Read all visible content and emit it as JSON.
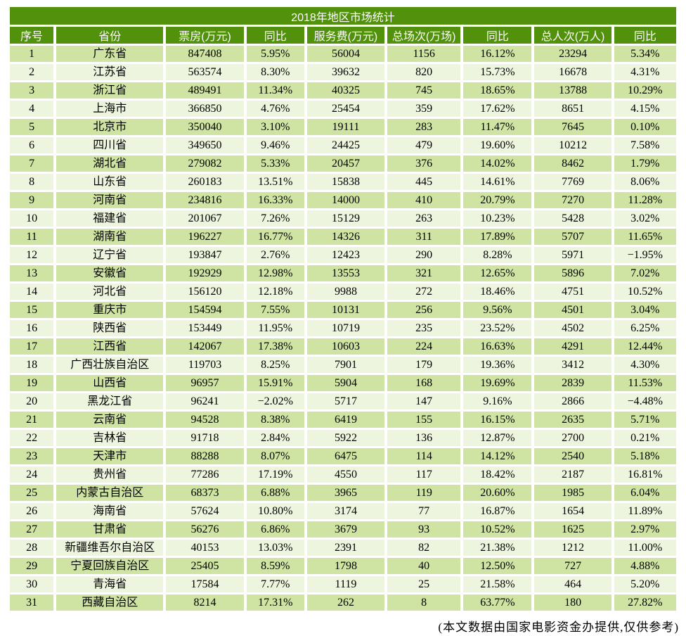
{
  "colors": {
    "header_green": "#52910b",
    "row_odd": "#cfe3a3",
    "row_even": "#edf5de",
    "header_text": "#ffffff",
    "text": "#000000",
    "page_bg": "#ffffff"
  },
  "footer_note": "(本文数据由国家电影资金办提供,仅供参考)",
  "chart_data": {
    "type": "table",
    "title": "2018年地区市场统计",
    "columns": [
      "序号",
      "省份",
      "票房(万元)",
      "同比",
      "服务费(万元)",
      "总场次(万场)",
      "同比",
      "总人次(万人)",
      "同比"
    ],
    "column_keys": [
      "rank",
      "province",
      "box-office",
      "box-office-yoy",
      "service-fee",
      "screenings",
      "screenings-yoy",
      "admissions",
      "admissions-yoy"
    ],
    "rows": [
      [
        "1",
        "广东省",
        "847408",
        "5.95%",
        "56004",
        "1156",
        "16.12%",
        "23294",
        "5.34%"
      ],
      [
        "2",
        "江苏省",
        "563574",
        "8.30%",
        "39632",
        "820",
        "15.73%",
        "16678",
        "4.31%"
      ],
      [
        "3",
        "浙江省",
        "489491",
        "11.34%",
        "40325",
        "745",
        "18.65%",
        "13788",
        "10.29%"
      ],
      [
        "4",
        "上海市",
        "366850",
        "4.76%",
        "25454",
        "359",
        "17.62%",
        "8651",
        "4.15%"
      ],
      [
        "5",
        "北京市",
        "350040",
        "3.10%",
        "19111",
        "283",
        "11.47%",
        "7645",
        "0.10%"
      ],
      [
        "6",
        "四川省",
        "349650",
        "9.46%",
        "24425",
        "479",
        "19.60%",
        "10212",
        "7.58%"
      ],
      [
        "7",
        "湖北省",
        "279082",
        "5.33%",
        "20457",
        "376",
        "14.02%",
        "8462",
        "1.79%"
      ],
      [
        "8",
        "山东省",
        "260183",
        "13.51%",
        "15838",
        "445",
        "14.61%",
        "7769",
        "8.06%"
      ],
      [
        "9",
        "河南省",
        "234816",
        "16.33%",
        "14000",
        "410",
        "20.79%",
        "7270",
        "11.28%"
      ],
      [
        "10",
        "福建省",
        "201067",
        "7.26%",
        "15129",
        "263",
        "10.23%",
        "5428",
        "3.02%"
      ],
      [
        "11",
        "湖南省",
        "196227",
        "16.77%",
        "14326",
        "311",
        "17.89%",
        "5707",
        "11.65%"
      ],
      [
        "12",
        "辽宁省",
        "193847",
        "2.76%",
        "12423",
        "290",
        "8.28%",
        "5971",
        "−1.95%"
      ],
      [
        "13",
        "安徽省",
        "192929",
        "12.98%",
        "13553",
        "321",
        "12.65%",
        "5896",
        "7.02%"
      ],
      [
        "14",
        "河北省",
        "156120",
        "12.18%",
        "9988",
        "272",
        "18.46%",
        "4751",
        "10.52%"
      ],
      [
        "15",
        "重庆市",
        "154594",
        "7.55%",
        "10131",
        "256",
        "9.56%",
        "4501",
        "3.04%"
      ],
      [
        "16",
        "陕西省",
        "153449",
        "11.95%",
        "10719",
        "235",
        "23.52%",
        "4502",
        "6.25%"
      ],
      [
        "17",
        "江西省",
        "142067",
        "17.38%",
        "10603",
        "224",
        "16.63%",
        "4291",
        "12.44%"
      ],
      [
        "18",
        "广西壮族自治区",
        "119703",
        "8.25%",
        "7901",
        "179",
        "19.36%",
        "3412",
        "4.30%"
      ],
      [
        "19",
        "山西省",
        "96957",
        "15.91%",
        "5904",
        "168",
        "19.69%",
        "2839",
        "11.53%"
      ],
      [
        "20",
        "黑龙江省",
        "96241",
        "−2.02%",
        "5717",
        "147",
        "9.16%",
        "2866",
        "−4.48%"
      ],
      [
        "21",
        "云南省",
        "94528",
        "8.38%",
        "6419",
        "155",
        "16.15%",
        "2635",
        "5.71%"
      ],
      [
        "22",
        "吉林省",
        "91718",
        "2.84%",
        "5922",
        "136",
        "12.87%",
        "2700",
        "0.21%"
      ],
      [
        "23",
        "天津市",
        "88288",
        "8.07%",
        "6475",
        "114",
        "14.12%",
        "2540",
        "5.18%"
      ],
      [
        "24",
        "贵州省",
        "77286",
        "17.19%",
        "4550",
        "117",
        "18.42%",
        "2187",
        "16.81%"
      ],
      [
        "25",
        "内蒙古自治区",
        "68373",
        "6.88%",
        "3965",
        "119",
        "20.60%",
        "1985",
        "6.04%"
      ],
      [
        "26",
        "海南省",
        "57624",
        "10.80%",
        "3174",
        "77",
        "16.87%",
        "1654",
        "11.89%"
      ],
      [
        "27",
        "甘肃省",
        "56276",
        "6.86%",
        "3679",
        "93",
        "10.52%",
        "1625",
        "2.97%"
      ],
      [
        "28",
        "新疆维吾尔自治区",
        "40153",
        "13.03%",
        "2391",
        "82",
        "21.38%",
        "1212",
        "11.00%"
      ],
      [
        "29",
        "宁夏回族自治区",
        "25405",
        "8.59%",
        "1798",
        "40",
        "12.50%",
        "727",
        "4.88%"
      ],
      [
        "30",
        "青海省",
        "17584",
        "7.77%",
        "1119",
        "25",
        "21.58%",
        "464",
        "5.20%"
      ],
      [
        "31",
        "西藏自治区",
        "8214",
        "17.31%",
        "262",
        "8",
        "63.77%",
        "180",
        "27.82%"
      ]
    ]
  }
}
